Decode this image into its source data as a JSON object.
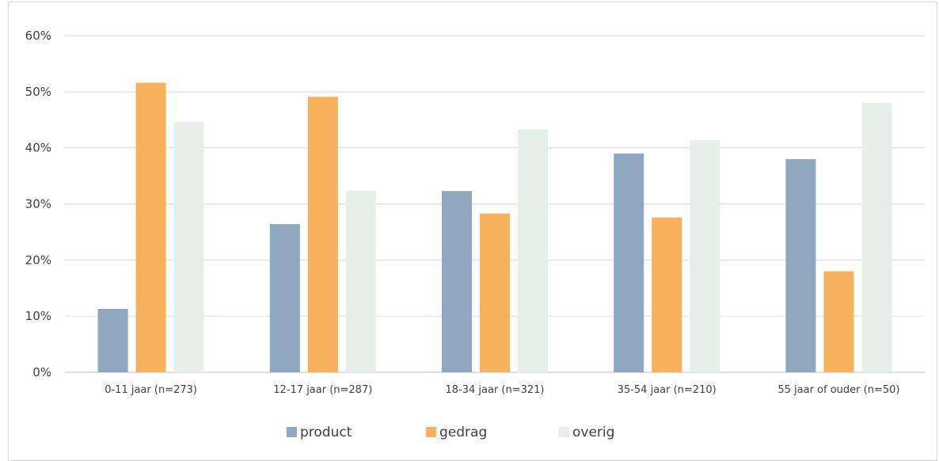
{
  "chart_data": {
    "type": "bar",
    "categories": [
      "0-11 jaar (n=273)",
      "12-17 jaar (n=287)",
      "18-34 jaar (n=321)",
      "35-54 jaar (n=210)",
      "55 jaar of ouder (n=50)"
    ],
    "series": [
      {
        "name": "product",
        "color": "#8fa7bf",
        "values": [
          11.3,
          26.4,
          32.3,
          39.0,
          38.0
        ]
      },
      {
        "name": "gedrag",
        "color": "#f7b05b",
        "values": [
          51.6,
          49.1,
          28.3,
          27.6,
          18.0
        ]
      },
      {
        "name": "overig",
        "color": "#e6efea",
        "values": [
          44.6,
          32.4,
          43.3,
          41.4,
          48.0
        ]
      }
    ],
    "yticks": [
      "0%",
      "10%",
      "20%",
      "30%",
      "40%",
      "50%",
      "60%"
    ],
    "ylim": [
      0,
      60
    ],
    "grid": true,
    "legend_position": "bottom",
    "title": "",
    "xlabel": "",
    "ylabel": ""
  }
}
